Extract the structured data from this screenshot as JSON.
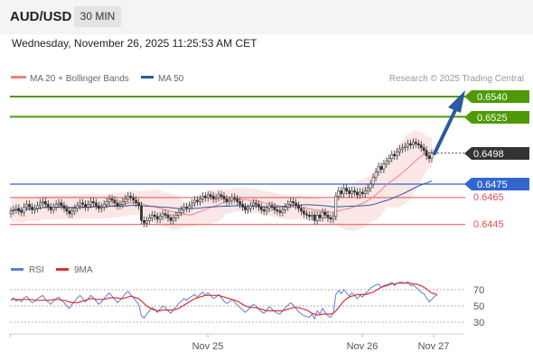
{
  "header": {
    "symbol": "AUD/USD",
    "timeframe": "30 MIN"
  },
  "datetime": "Wednesday, November 26, 2025 11:25:53 AM CET",
  "legend": {
    "ma20_label": "MA 20 + Bollinger Bands",
    "ma50_label": "MA 50",
    "ma20_color": "#f08080",
    "ma50_color": "#2c5aa0"
  },
  "credit": "Research © 2025 Trading Central",
  "colors": {
    "target": "#4e9a06",
    "pivot": "#3366cc",
    "support": "#e05050",
    "current_price_bg": "#333333",
    "arrow": "#2c5aa0",
    "bollinger_fill": "#fbe3e3",
    "candle": "#333333",
    "rsi": "#5b7fd6",
    "rsi_ma": "#e03030"
  },
  "levels": {
    "target2": "0.6540",
    "target1": "0.6525",
    "current": "0.6498",
    "pivot": "0.6475",
    "support1": "0.6465",
    "support2": "0.6445"
  },
  "rsi_legend": {
    "rsi_label": "RSI",
    "ma_label": "9MA"
  },
  "rsi_ticks": [
    "70",
    "50",
    "30"
  ],
  "x_ticks": [
    "Nov 25",
    "Nov 26",
    "Nov 27"
  ],
  "chart_data": [
    {
      "type": "candlestick",
      "title": "AUD/USD",
      "timeframe": "30 MIN",
      "ylim": [
        0.6425,
        0.6545
      ],
      "x_ticks": [
        "Nov 25",
        "Nov 26",
        "Nov 27"
      ],
      "horizontal_levels": [
        {
          "name": "target2",
          "value": 0.654
        },
        {
          "name": "target1",
          "value": 0.6525
        },
        {
          "name": "current",
          "value": 0.6498
        },
        {
          "name": "pivot",
          "value": 0.6475
        },
        {
          "name": "support1",
          "value": 0.6465
        },
        {
          "name": "support2",
          "value": 0.6445
        }
      ],
      "close_series": [
        0.6455,
        0.6456,
        0.6457,
        0.6455,
        0.6454,
        0.6458,
        0.646,
        0.6458,
        0.6456,
        0.6457,
        0.6459,
        0.6461,
        0.6462,
        0.646,
        0.6458,
        0.6456,
        0.6458,
        0.646,
        0.6461,
        0.6459,
        0.6457,
        0.6455,
        0.6453,
        0.6455,
        0.6457,
        0.6459,
        0.6461,
        0.646,
        0.6458,
        0.646,
        0.6462,
        0.6461,
        0.6459,
        0.6457,
        0.6458,
        0.646,
        0.6462,
        0.6464,
        0.6463,
        0.6461,
        0.6459,
        0.646,
        0.6462,
        0.6464,
        0.6466,
        0.6465,
        0.6463,
        0.6461,
        0.6459,
        0.6448,
        0.6446,
        0.6448,
        0.645,
        0.6452,
        0.6451,
        0.6449,
        0.6451,
        0.6453,
        0.6452,
        0.645,
        0.6448,
        0.645,
        0.6452,
        0.6454,
        0.6456,
        0.6458,
        0.6457,
        0.6459,
        0.6461,
        0.6463,
        0.6462,
        0.6464,
        0.6466,
        0.6465,
        0.6467,
        0.6466,
        0.6464,
        0.6465,
        0.6467,
        0.6466,
        0.6464,
        0.6462,
        0.6463,
        0.6465,
        0.6464,
        0.6462,
        0.646,
        0.6458,
        0.6456,
        0.6457,
        0.6459,
        0.6461,
        0.646,
        0.6458,
        0.6456,
        0.6455,
        0.6457,
        0.6459,
        0.6458,
        0.6456,
        0.6455,
        0.6454,
        0.6456,
        0.6458,
        0.646,
        0.6462,
        0.6461,
        0.6459,
        0.6457,
        0.6455,
        0.6453,
        0.6452,
        0.6451,
        0.6452,
        0.6448,
        0.6452,
        0.645,
        0.6454,
        0.6452,
        0.645,
        0.6449,
        0.6451,
        0.6466,
        0.647,
        0.6468,
        0.6472,
        0.647,
        0.6468,
        0.647,
        0.6469,
        0.6467,
        0.6469,
        0.6468,
        0.647,
        0.6472,
        0.6475,
        0.648,
        0.6484,
        0.6488,
        0.6486,
        0.649,
        0.6492,
        0.6494,
        0.6497,
        0.6496,
        0.6499,
        0.6501,
        0.6502,
        0.6503,
        0.6505,
        0.6504,
        0.6506,
        0.6505,
        0.6504,
        0.6502,
        0.65,
        0.6496,
        0.6494,
        0.6498
      ],
      "rsi": {
        "ticks": [
          70,
          50,
          30
        ],
        "rsi_values": [
          57,
          60,
          56,
          58,
          55,
          60,
          62,
          57,
          54,
          56,
          59,
          61,
          63,
          58,
          55,
          52,
          56,
          59,
          61,
          57,
          54,
          50,
          47,
          52,
          56,
          60,
          63,
          59,
          55,
          59,
          63,
          60,
          56,
          52,
          55,
          59,
          63,
          66,
          62,
          58,
          54,
          57,
          61,
          65,
          68,
          64,
          60,
          56,
          52,
          38,
          35,
          40,
          44,
          48,
          46,
          42,
          46,
          50,
          48,
          44,
          41,
          45,
          49,
          53,
          56,
          59,
          57,
          60,
          62,
          64,
          61,
          64,
          67,
          63,
          66,
          63,
          59,
          61,
          64,
          60,
          56,
          53,
          55,
          58,
          55,
          51,
          48,
          45,
          42,
          45,
          49,
          52,
          50,
          46,
          43,
          41,
          45,
          49,
          46,
          43,
          41,
          40,
          44,
          48,
          51,
          54,
          51,
          47,
          43,
          40,
          38,
          37,
          36,
          40,
          34,
          44,
          40,
          47,
          42,
          38,
          36,
          41,
          64,
          69,
          65,
          70,
          66,
          62,
          66,
          63,
          59,
          63,
          61,
          65,
          68,
          72,
          74,
          76,
          77,
          73,
          75,
          76,
          77,
          79,
          75,
          78,
          79,
          79,
          78,
          80,
          75,
          76,
          73,
          70,
          67,
          65,
          60,
          55,
          58,
          62,
          63
        ],
        "ma_values": [
          58,
          58,
          58,
          58,
          58,
          58,
          58,
          58,
          58,
          57,
          57,
          57,
          57,
          57,
          57,
          57,
          58,
          58,
          58,
          57,
          57,
          56,
          55,
          54,
          54,
          54,
          55,
          56,
          57,
          58,
          59,
          59,
          58,
          58,
          58,
          58,
          59,
          60,
          60,
          60,
          60,
          59,
          59,
          60,
          61,
          62,
          61,
          60,
          59,
          56,
          53,
          50,
          48,
          46,
          45,
          44,
          44,
          45,
          45,
          45,
          45,
          45,
          46,
          47,
          49,
          51,
          53,
          55,
          57,
          59,
          60,
          61,
          62,
          63,
          63,
          63,
          63,
          63,
          63,
          62,
          61,
          60,
          59,
          58,
          57,
          56,
          54,
          52,
          50,
          49,
          48,
          48,
          48,
          47,
          46,
          45,
          44,
          44,
          44,
          44,
          44,
          44,
          44,
          45,
          46,
          47,
          48,
          48,
          48,
          47,
          46,
          45,
          43,
          41,
          40,
          39,
          39,
          40,
          40,
          40,
          40,
          41,
          44,
          48,
          52,
          56,
          59,
          61,
          62,
          63,
          64,
          64,
          64,
          64,
          65,
          66,
          67,
          69,
          71,
          73,
          74,
          75,
          76,
          77,
          77,
          78,
          78,
          78,
          78,
          78,
          78,
          77,
          77,
          76,
          75,
          73,
          71,
          68,
          66,
          65,
          64
        ]
      }
    }
  ]
}
